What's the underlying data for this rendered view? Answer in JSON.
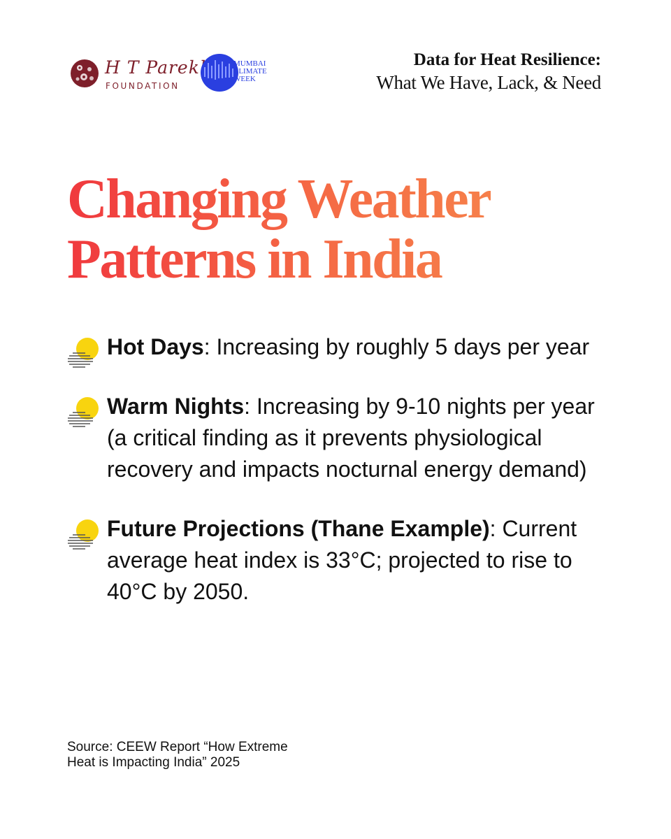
{
  "header": {
    "htp_logo": {
      "name": "H T Parekh",
      "subtitle": "FOUNDATION"
    },
    "mcw_logo": {
      "text": "MUMBAI\nCLIMATE\nWEEK"
    },
    "series_line1": "Data for Heat Resilience:",
    "series_line2": "What We Have, Lack, & Need"
  },
  "title": {
    "line1": "Changing Weather",
    "line2": "Patterns in India"
  },
  "bullets": [
    {
      "term": "Hot Days",
      "sep": ":",
      "text": " Increasing by roughly 5 days per year"
    },
    {
      "term": "Warm Nights",
      "sep": ":",
      "text": " Increasing by 9-10 nights per year (a critical finding as it prevents physiological recovery and impacts nocturnal energy demand)"
    },
    {
      "term": "Future Projections (Thane Example)",
      "sep": ":",
      "text": " Current average heat index is 33°C; projected to rise to 40°C by 2050."
    }
  ],
  "source": {
    "line1": "Source: CEEW  Report “How Extreme",
    "line2": "Heat is Impacting India”  2025"
  },
  "colors": {
    "title_gradient_start": "#f0393e",
    "title_gradient_end": "#f6904e",
    "htp_maroon": "#7e1f2a",
    "mcw_blue": "#2a3fe0",
    "sun_yellow": "#f8d40f"
  },
  "icons": {
    "bullet": "sun-stripes-icon",
    "htp": "htp-foundation-logo",
    "mcw": "mumbai-climate-week-logo"
  }
}
